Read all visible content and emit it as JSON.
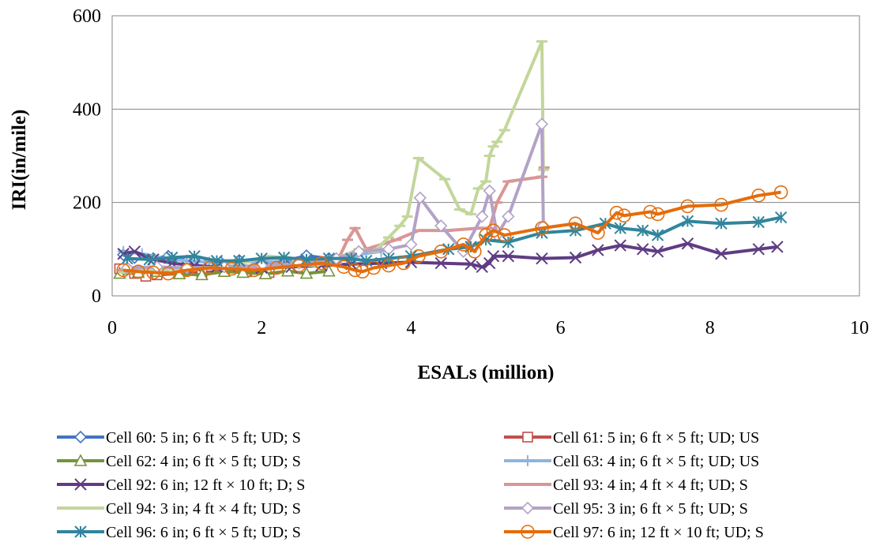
{
  "chart_data": {
    "type": "line",
    "title": "",
    "xlabel": "ESALs (million)",
    "ylabel": "IRI(in/mile)",
    "xlim": [
      0,
      10
    ],
    "ylim": [
      0,
      600
    ],
    "x_ticks": [
      "0",
      "2",
      "4",
      "6",
      "8",
      "10"
    ],
    "y_ticks": [
      "0",
      "200",
      "400",
      "600"
    ],
    "grid": "horizontal major gridlines",
    "legend_position": "bottom, two columns",
    "series": [
      {
        "name": "Cell 60: 5 in; 6 ft × 5 ft; UD; S",
        "color": "#4472C4",
        "marker": "diamond",
        "x": [
          0.15,
          0.3,
          0.55,
          0.75,
          1.0,
          1.2,
          1.45,
          1.7,
          2.0,
          2.3,
          2.6,
          2.9,
          3.2
        ],
        "y": [
          88,
          82,
          80,
          85,
          75,
          72,
          72,
          76,
          72,
          74,
          86,
          80,
          78
        ]
      },
      {
        "name": "Cell 61: 5 in; 6 ft × 5 ft; UD; US",
        "color": "#C0504D",
        "marker": "square",
        "x": [
          0.1,
          0.3,
          0.45,
          0.6,
          0.9,
          1.2,
          1.5,
          1.8,
          2.1
        ],
        "y": [
          58,
          48,
          42,
          45,
          48,
          50,
          53,
          52,
          50
        ]
      },
      {
        "name": "Cell 62: 4 in; 6 ft × 5 ft; UD; S",
        "color": "#76933C",
        "marker": "triangle",
        "x": [
          0.1,
          0.35,
          0.6,
          0.9,
          1.2,
          1.5,
          1.75,
          2.05,
          2.35,
          2.6,
          2.9
        ],
        "y": [
          48,
          50,
          52,
          47,
          45,
          52,
          50,
          47,
          53,
          48,
          53
        ]
      },
      {
        "name": "Cell 63: 4 in; 6 ft × 5 ft; UD; US",
        "color": "#8DB4E2",
        "marker": "plus",
        "x": [
          0.15,
          0.4,
          0.7,
          1.0,
          1.3,
          1.65,
          2.0,
          2.3,
          2.6,
          2.9,
          3.2,
          3.35,
          3.6
        ],
        "y": [
          95,
          90,
          80,
          75,
          72,
          72,
          74,
          72,
          70,
          75,
          80,
          90,
          95
        ]
      },
      {
        "name": "Cell 92: 6 in; 12 ft × 10 ft; D; S",
        "color": "#5F3C83",
        "marker": "x",
        "x": [
          0.15,
          0.3,
          0.55,
          0.8,
          1.1,
          1.4,
          1.7,
          2.0,
          2.4,
          2.8,
          3.2,
          3.6,
          4.0,
          4.4,
          4.8,
          4.95,
          5.05,
          5.1,
          5.3,
          5.75,
          6.2,
          6.5,
          6.8,
          7.1,
          7.3,
          7.7,
          8.15,
          8.65,
          8.9
        ],
        "y": [
          90,
          95,
          78,
          70,
          65,
          62,
          65,
          60,
          62,
          65,
          68,
          70,
          72,
          70,
          68,
          62,
          70,
          85,
          85,
          80,
          82,
          98,
          108,
          100,
          95,
          112,
          90,
          100,
          105
        ]
      },
      {
        "name": "Cell 93: 4 in; 4 ft × 4 ft; UD; S",
        "color": "#D99694",
        "marker": "dash",
        "x": [
          0.15,
          0.5,
          1.0,
          1.5,
          2.0,
          2.5,
          3.0,
          3.15,
          3.25,
          3.4,
          3.8,
          4.1,
          4.5,
          4.9,
          5.05,
          5.15,
          5.3,
          5.75,
          5.78
        ],
        "y": [
          55,
          55,
          58,
          60,
          62,
          65,
          70,
          120,
          145,
          100,
          120,
          140,
          140,
          145,
          145,
          200,
          245,
          255,
          275
        ]
      },
      {
        "name": "Cell 94: 3 in; 4 ft × 4 ft; UD; S",
        "color": "#C3D69B",
        "marker": "dash",
        "x": [
          0.15,
          0.5,
          1.0,
          1.5,
          2.1,
          2.4,
          2.7,
          3.0,
          3.3,
          3.5,
          3.7,
          3.85,
          3.95,
          4.1,
          4.45,
          4.65,
          4.8,
          4.9,
          5.0,
          5.05,
          5.1,
          5.15,
          5.25,
          5.75,
          5.77
        ],
        "y": [
          50,
          55,
          58,
          60,
          85,
          80,
          65,
          80,
          100,
          95,
          125,
          150,
          170,
          295,
          250,
          185,
          175,
          230,
          245,
          300,
          320,
          330,
          355,
          545,
          270
        ]
      },
      {
        "name": "Cell 95: 3 in; 6 ft × 5 ft; UD; S",
        "color": "#B3A2C7",
        "marker": "diamond",
        "x": [
          0.2,
          0.6,
          1.0,
          1.5,
          2.0,
          2.5,
          3.0,
          3.3,
          3.7,
          4.0,
          4.12,
          4.4,
          4.7,
          4.95,
          5.05,
          5.15,
          5.3,
          5.75,
          5.77
        ],
        "y": [
          60,
          62,
          60,
          62,
          65,
          70,
          80,
          95,
          100,
          110,
          210,
          150,
          95,
          170,
          225,
          130,
          170,
          368,
          150
        ]
      },
      {
        "name": "Cell 96: 6 in; 6 ft × 5 ft; UD; S",
        "color": "#31859C",
        "marker": "star",
        "x": [
          0.2,
          0.5,
          0.8,
          1.1,
          1.4,
          1.7,
          2.0,
          2.3,
          2.6,
          2.9,
          3.2,
          3.4,
          3.7,
          4.0,
          4.5,
          4.8,
          5.0,
          5.3,
          5.75,
          6.2,
          6.6,
          6.8,
          7.1,
          7.3,
          7.7,
          8.15,
          8.65,
          8.95
        ],
        "y": [
          80,
          78,
          82,
          85,
          75,
          75,
          80,
          82,
          78,
          80,
          80,
          75,
          80,
          85,
          100,
          105,
          120,
          115,
          135,
          140,
          155,
          145,
          140,
          130,
          160,
          155,
          158,
          168
        ]
      },
      {
        "name": "Cell 97: 6 in; 12 ft × 10 ft; UD; S",
        "color": "#E46C0A",
        "marker": "circle",
        "x": [
          0.15,
          0.35,
          0.55,
          0.75,
          1.0,
          1.3,
          1.6,
          1.9,
          2.2,
          2.5,
          2.8,
          3.1,
          3.25,
          3.35,
          3.5,
          3.7,
          3.9,
          4.1,
          4.4,
          4.7,
          4.85,
          5.0,
          5.1,
          5.25,
          5.75,
          6.2,
          6.5,
          6.75,
          6.85,
          7.2,
          7.3,
          7.7,
          8.15,
          8.65,
          8.95
        ],
        "y": [
          55,
          52,
          50,
          48,
          55,
          60,
          58,
          55,
          60,
          65,
          70,
          62,
          55,
          52,
          60,
          65,
          70,
          85,
          95,
          110,
          95,
          130,
          140,
          130,
          145,
          155,
          135,
          178,
          172,
          180,
          175,
          192,
          195,
          215,
          222
        ]
      }
    ]
  }
}
